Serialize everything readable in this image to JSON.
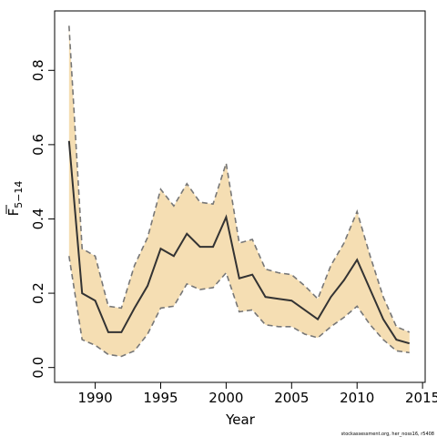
{
  "chart_data": {
    "type": "line",
    "xlabel": "Year",
    "ylabel_base": "F",
    "ylabel_sub": "5−14",
    "credit": "stockassessment.org, her_noss16, r5408",
    "xlim": [
      1986.9,
      2015.2
    ],
    "ylim": [
      -0.04,
      0.96
    ],
    "xticks": [
      1990,
      1995,
      2000,
      2005,
      2010,
      2015
    ],
    "yticks": [
      0.0,
      0.2,
      0.4,
      0.6,
      0.8
    ],
    "ytick_labels": [
      "0.0",
      "0.2",
      "0.4",
      "0.6",
      "0.8"
    ],
    "colors": {
      "band": "#f5deb3",
      "line": "#333333",
      "bound": "#777777"
    },
    "x": [
      1988,
      1989,
      1990,
      1991,
      1992,
      1993,
      1994,
      1995,
      1996,
      1997,
      1998,
      1999,
      2000,
      2001,
      2002,
      2003,
      2004,
      2005,
      2006,
      2007,
      2008,
      2009,
      2010,
      2011,
      2012,
      2013,
      2014
    ],
    "series": [
      {
        "role": "estimate",
        "values": [
          0.61,
          0.2,
          0.18,
          0.095,
          0.095,
          0.16,
          0.22,
          0.32,
          0.3,
          0.36,
          0.325,
          0.325,
          0.405,
          0.24,
          0.25,
          0.19,
          0.185,
          0.18,
          0.155,
          0.13,
          0.19,
          0.235,
          0.29,
          0.21,
          0.13,
          0.075,
          0.065
        ]
      },
      {
        "role": "upper",
        "values": [
          0.92,
          0.32,
          0.3,
          0.165,
          0.16,
          0.275,
          0.35,
          0.48,
          0.435,
          0.495,
          0.445,
          0.44,
          0.55,
          0.335,
          0.345,
          0.265,
          0.255,
          0.25,
          0.22,
          0.185,
          0.275,
          0.335,
          0.42,
          0.3,
          0.19,
          0.11,
          0.095
        ]
      },
      {
        "role": "lower",
        "values": [
          0.3,
          0.075,
          0.06,
          0.035,
          0.03,
          0.045,
          0.09,
          0.16,
          0.165,
          0.225,
          0.21,
          0.215,
          0.255,
          0.15,
          0.155,
          0.115,
          0.11,
          0.11,
          0.09,
          0.08,
          0.11,
          0.135,
          0.165,
          0.115,
          0.075,
          0.045,
          0.04
        ]
      }
    ]
  }
}
